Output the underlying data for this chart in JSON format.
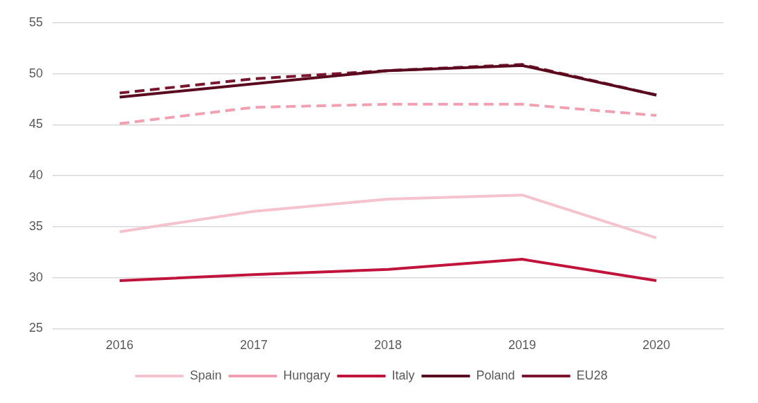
{
  "chart_data": {
    "type": "line",
    "categories": [
      "2016",
      "2017",
      "2018",
      "2019",
      "2020"
    ],
    "series": [
      {
        "name": "Spain",
        "color": "#f4c3cd",
        "line_style": "solid",
        "values": [
          34.5,
          36.5,
          37.7,
          38.1,
          33.9
        ]
      },
      {
        "name": "Hungary",
        "color": "#f2a0b1",
        "line_style": "dashed",
        "values": [
          45.1,
          46.7,
          47.0,
          47.0,
          45.9
        ]
      },
      {
        "name": "Italy",
        "color": "#c0143c",
        "line_style": "solid",
        "values": [
          29.7,
          30.3,
          30.8,
          31.8,
          29.7
        ]
      },
      {
        "name": "Poland",
        "color": "#5a0a1e",
        "line_style": "solid",
        "values": [
          47.7,
          49.0,
          50.3,
          50.8,
          47.9
        ]
      },
      {
        "name": "EU28",
        "color": "#7a1530",
        "line_style": "dashed",
        "values": [
          48.1,
          49.5,
          50.3,
          50.9,
          47.9
        ]
      }
    ],
    "ylim": [
      25,
      55
    ],
    "yticks": [
      25,
      30,
      35,
      40,
      45,
      50,
      55
    ],
    "grid": "y",
    "legend": "bottom",
    "marker": "none"
  }
}
